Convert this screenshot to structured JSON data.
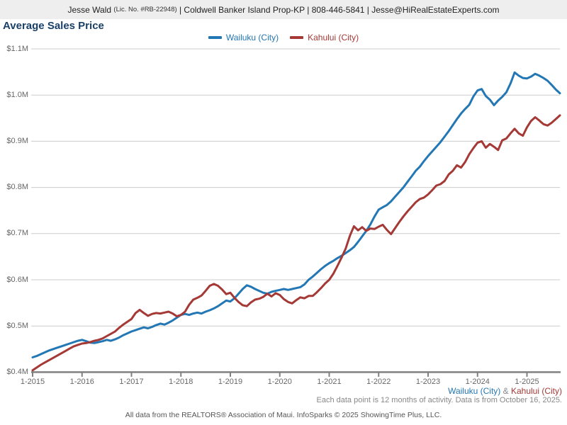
{
  "header": {
    "agent": "Jesse Wald ",
    "license": "(Lic. No. #RB-22948)",
    "rest": " | Coldwell Banker Island Prop-KP | 808-446-5841 | Jesse@HiRealEstateExperts.com"
  },
  "title": "Average Sales Price",
  "colors": {
    "wailuku_blue": "#2377b4",
    "kahului_red": "#a43936",
    "gridline": "#cccccc",
    "axis": "#808080",
    "title_navy": "#1a4067",
    "footnote_gray": "#888888"
  },
  "legend": [
    {
      "label": "Wailuku (City)",
      "color": "#2377b4"
    },
    {
      "label": "Kahului (City)",
      "color": "#a43936"
    }
  ],
  "footer": {
    "series1": "Wailuku (City)",
    "amp": " & ",
    "series2": "Kahului (City)",
    "data_note": "Each data point is 12 months of activity. Data is from October 16, 2025.",
    "attribution": "All data from the REALTORS® Association of Maui. InfoSparks © 2025 ShowingTime Plus, LLC."
  },
  "chart_data": {
    "type": "line",
    "title": "Average Sales Price",
    "x_tick_labels": [
      "1-2015",
      "1-2016",
      "1-2017",
      "1-2018",
      "1-2019",
      "1-2020",
      "1-2021",
      "1-2022",
      "1-2023",
      "1-2024",
      "1-2025"
    ],
    "y_tick_labels": [
      "$1.1M",
      "$1.0M",
      "$0.9M",
      "$0.8M",
      "$0.7M",
      "$0.6M",
      "$0.5M",
      "$0.4M"
    ],
    "ylim": [
      0.4,
      1.1
    ],
    "y_unit": "million USD",
    "x_start": "2015-01",
    "x_step": "1 month",
    "points_per_year": 12,
    "grid": "horizontal only",
    "legend_position": "top center",
    "series": [
      {
        "name": "Wailuku (City)",
        "color": "#2377b4",
        "values": [
          0.432,
          0.435,
          0.439,
          0.443,
          0.447,
          0.45,
          0.453,
          0.456,
          0.459,
          0.462,
          0.465,
          0.468,
          0.47,
          0.467,
          0.464,
          0.463,
          0.465,
          0.467,
          0.47,
          0.468,
          0.471,
          0.475,
          0.48,
          0.484,
          0.488,
          0.491,
          0.494,
          0.497,
          0.495,
          0.498,
          0.502,
          0.505,
          0.503,
          0.507,
          0.512,
          0.518,
          0.524,
          0.526,
          0.524,
          0.527,
          0.529,
          0.527,
          0.531,
          0.534,
          0.538,
          0.543,
          0.549,
          0.555,
          0.553,
          0.56,
          0.57,
          0.58,
          0.588,
          0.585,
          0.58,
          0.576,
          0.572,
          0.57,
          0.574,
          0.576,
          0.578,
          0.58,
          0.578,
          0.58,
          0.582,
          0.584,
          0.59,
          0.6,
          0.607,
          0.615,
          0.623,
          0.63,
          0.636,
          0.641,
          0.647,
          0.652,
          0.658,
          0.664,
          0.671,
          0.682,
          0.694,
          0.706,
          0.72,
          0.737,
          0.752,
          0.757,
          0.762,
          0.77,
          0.78,
          0.79,
          0.8,
          0.812,
          0.824,
          0.836,
          0.845,
          0.857,
          0.868,
          0.878,
          0.888,
          0.898,
          0.91,
          0.922,
          0.935,
          0.948,
          0.96,
          0.97,
          0.979,
          0.997,
          1.01,
          1.013,
          0.998,
          0.99,
          0.978,
          0.988,
          0.996,
          1.006,
          1.025,
          1.049,
          1.042,
          1.037,
          1.036,
          1.04,
          1.046,
          1.042,
          1.037,
          1.031,
          1.022,
          1.012,
          1.004
        ]
      },
      {
        "name": "Kahului (City)",
        "color": "#a43936",
        "values": [
          0.404,
          0.41,
          0.416,
          0.421,
          0.426,
          0.431,
          0.436,
          0.441,
          0.446,
          0.451,
          0.456,
          0.459,
          0.462,
          0.463,
          0.465,
          0.468,
          0.47,
          0.473,
          0.478,
          0.483,
          0.488,
          0.496,
          0.503,
          0.509,
          0.515,
          0.528,
          0.535,
          0.528,
          0.522,
          0.526,
          0.528,
          0.527,
          0.529,
          0.531,
          0.527,
          0.521,
          0.524,
          0.531,
          0.546,
          0.557,
          0.561,
          0.566,
          0.576,
          0.587,
          0.591,
          0.587,
          0.579,
          0.569,
          0.572,
          0.561,
          0.552,
          0.545,
          0.543,
          0.551,
          0.557,
          0.559,
          0.563,
          0.57,
          0.564,
          0.571,
          0.567,
          0.558,
          0.552,
          0.549,
          0.556,
          0.562,
          0.56,
          0.565,
          0.565,
          0.573,
          0.582,
          0.592,
          0.6,
          0.613,
          0.63,
          0.648,
          0.668,
          0.695,
          0.716,
          0.707,
          0.714,
          0.706,
          0.711,
          0.71,
          0.715,
          0.719,
          0.708,
          0.699,
          0.712,
          0.725,
          0.737,
          0.748,
          0.758,
          0.768,
          0.775,
          0.778,
          0.785,
          0.794,
          0.804,
          0.807,
          0.814,
          0.828,
          0.836,
          0.848,
          0.843,
          0.855,
          0.872,
          0.885,
          0.897,
          0.9,
          0.886,
          0.894,
          0.888,
          0.881,
          0.902,
          0.906,
          0.917,
          0.927,
          0.917,
          0.912,
          0.93,
          0.944,
          0.952,
          0.945,
          0.937,
          0.934,
          0.94,
          0.948,
          0.956
        ]
      }
    ]
  }
}
